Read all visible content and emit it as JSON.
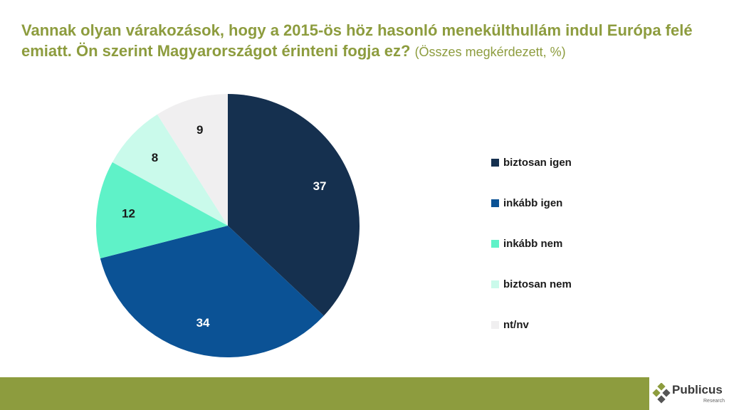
{
  "title": {
    "main": "Vannak olyan várakozások, hogy a 2015-ös höz hasonló menekülthullám indul Európa felé emiatt. Ön szerint Magyarországot érinteni fogja ez?",
    "sub": "(Összes megkérdezett, %)"
  },
  "chart_data": {
    "type": "pie",
    "categories": [
      "biztosan igen",
      "inkább igen",
      "inkább nem",
      "biztosan nem",
      "nt/nv"
    ],
    "values": [
      37,
      34,
      12,
      8,
      9
    ],
    "colors": [
      "#15304f",
      "#0b5295",
      "#5ff2c8",
      "#cafaeb",
      "#f0eff0"
    ],
    "label_colors": [
      "#ffffff",
      "#ffffff",
      "#1a1a1a",
      "#1a1a1a",
      "#1a1a1a"
    ],
    "start": "12 o'clock",
    "direction": "clockwise",
    "legend": "right"
  },
  "logo": {
    "name": "Publicus",
    "sub": "Research",
    "icon": "diamond-cluster-icon"
  }
}
